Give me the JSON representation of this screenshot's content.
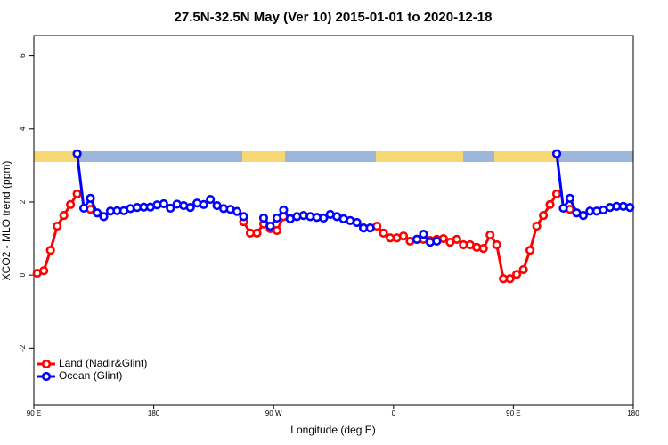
{
  "chart_data": {
    "type": "line",
    "title": "27.5N-32.5N May (Ver 10)   2015-01-01 to 2020-12-18",
    "x_label": "Longitude (deg E)",
    "y_label": "XCO2 - MLO trend (ppm)",
    "x": [
      92.5,
      97.5,
      102.5,
      107.5,
      112.5,
      117.5,
      122.5,
      127.5,
      132.5,
      137.5,
      142.5,
      147.5,
      152.5,
      157.5,
      162.5,
      167.5,
      172.5,
      177.5,
      182.5,
      187.5,
      192.5,
      197.5,
      202.5,
      207.5,
      212.5,
      217.5,
      222.5,
      227.5,
      232.5,
      237.5,
      242.5,
      247.5,
      252.5,
      257.5,
      262.5,
      267.5,
      272.5,
      277.5,
      282.5,
      287.5,
      292.5,
      297.5,
      302.5,
      307.5,
      312.5,
      317.5,
      322.5,
      327.5,
      332.5,
      337.5,
      342.5,
      347.5,
      352.5,
      357.5,
      362.5,
      367.5,
      372.5,
      377.5,
      382.5,
      387.5,
      392.5,
      397.5,
      402.5,
      407.5,
      412.5,
      417.5,
      422.5,
      427.5,
      432.5,
      437.5,
      442.5,
      447.5,
      452.5,
      457.5,
      462.5,
      467.5,
      472.5,
      477.5,
      482.5,
      487.5,
      492.5,
      497.5,
      502.5,
      507.5,
      512.5,
      517.5,
      522.5,
      527.5,
      532.5,
      537.5
    ],
    "series": [
      {
        "name": "Land (Nadir&Glint)",
        "color": "#ff0000",
        "values": [
          0.05,
          0.12,
          0.68,
          1.34,
          1.63,
          1.93,
          2.22,
          null,
          1.8,
          null,
          null,
          null,
          null,
          null,
          null,
          null,
          null,
          null,
          null,
          null,
          null,
          null,
          null,
          null,
          null,
          null,
          null,
          null,
          null,
          null,
          null,
          1.46,
          1.15,
          1.15,
          1.4,
          1.27,
          1.22,
          1.6,
          null,
          null,
          null,
          null,
          null,
          null,
          null,
          null,
          null,
          null,
          null,
          1.29,
          null,
          1.34,
          1.15,
          1.02,
          1.02,
          1.07,
          0.93,
          0.98,
          0.98,
          0.95,
          0.98,
          1.0,
          0.9,
          0.98,
          0.83,
          0.83,
          0.76,
          0.73,
          1.1,
          0.83,
          -0.1,
          -0.1,
          0.02,
          0.15,
          0.68,
          1.34,
          1.63,
          1.93,
          2.22,
          null,
          1.8,
          null,
          null,
          null,
          null,
          null,
          null,
          null,
          null,
          null
        ]
      },
      {
        "name": "Ocean (Glint)",
        "color": "#0000ff",
        "values": [
          null,
          null,
          null,
          null,
          null,
          null,
          3.32,
          1.83,
          2.1,
          1.7,
          1.6,
          1.75,
          1.76,
          1.76,
          1.82,
          1.85,
          1.86,
          1.86,
          1.92,
          1.95,
          1.83,
          1.94,
          1.9,
          1.85,
          1.97,
          1.93,
          2.07,
          1.9,
          1.82,
          1.8,
          1.74,
          1.6,
          null,
          null,
          1.56,
          1.34,
          1.56,
          1.78,
          1.54,
          1.6,
          1.63,
          1.6,
          1.58,
          1.56,
          1.66,
          1.6,
          1.54,
          1.49,
          1.44,
          1.29,
          1.29,
          null,
          null,
          null,
          null,
          null,
          null,
          0.98,
          1.12,
          0.9,
          0.93,
          null,
          null,
          null,
          null,
          null,
          null,
          null,
          null,
          null,
          null,
          null,
          null,
          null,
          null,
          null,
          null,
          null,
          3.32,
          1.83,
          2.1,
          1.7,
          1.63,
          1.75,
          1.75,
          1.78,
          1.85,
          1.88,
          1.88,
          1.85
        ]
      }
    ],
    "xlim": [
      90,
      540
    ],
    "xticks": [
      {
        "value": 90,
        "label": "90 E"
      },
      180,
      {
        "value": 270,
        "label": "90 W"
      },
      {
        "value": 360,
        "label": "0"
      },
      {
        "value": 450,
        "label": "90 E"
      },
      {
        "value": 540,
        "label": "180"
      }
    ],
    "ylim": [
      -3.55,
      6.55
    ],
    "yticks": [
      -2,
      0,
      2,
      4,
      6
    ],
    "legend": "bottomleft"
  }
}
